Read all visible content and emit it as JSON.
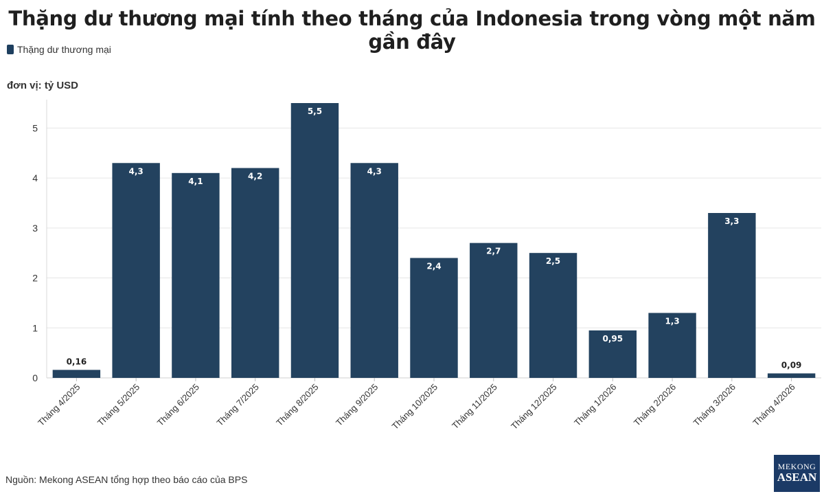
{
  "header": {
    "title": "Thặng dư thương mại tính theo tháng của Indonesia trong vòng một năm gần đây",
    "legend_label": "Thặng dư thương mại",
    "unit": "đơn vị: tỷ USD"
  },
  "footer": {
    "source": "Nguồn: Mekong ASEAN tổng hợp theo báo cáo của BPS",
    "logo_line1": "MEKONG",
    "logo_line2": "ASEAN"
  },
  "colors": {
    "bar": "#23425f",
    "grid": "#e6e6e6",
    "bar_label_inside": "#ffffff",
    "bar_label_outside": "#222222"
  },
  "chart_data": {
    "type": "bar",
    "categories": [
      "Tháng 4/2025",
      "Tháng 5/2025",
      "Tháng 6/2025",
      "Tháng 7/2025",
      "Tháng 8/2025",
      "Tháng 9/2025",
      "Tháng 10/2025",
      "Tháng 11/2025",
      "Tháng 12/2025",
      "Tháng 1/2026",
      "Tháng 2/2026",
      "Tháng 3/2026",
      "Tháng 4/2026"
    ],
    "series": [
      {
        "name": "Thặng dư thương mại",
        "values": [
          0.16,
          4.3,
          4.1,
          4.2,
          5.5,
          4.3,
          2.4,
          2.7,
          2.5,
          0.95,
          1.3,
          3.3,
          0.09
        ],
        "labels": [
          "0,16",
          "4,3",
          "4,1",
          "4,2",
          "5,5",
          "4,3",
          "2,4",
          "2,7",
          "2,5",
          "0,95",
          "1,3",
          "3,3",
          "0,09"
        ]
      }
    ],
    "yticks": [
      0,
      1,
      2,
      3,
      4,
      5
    ],
    "ylim": [
      0,
      5.5
    ],
    "grid": true,
    "legend": "top-left"
  }
}
